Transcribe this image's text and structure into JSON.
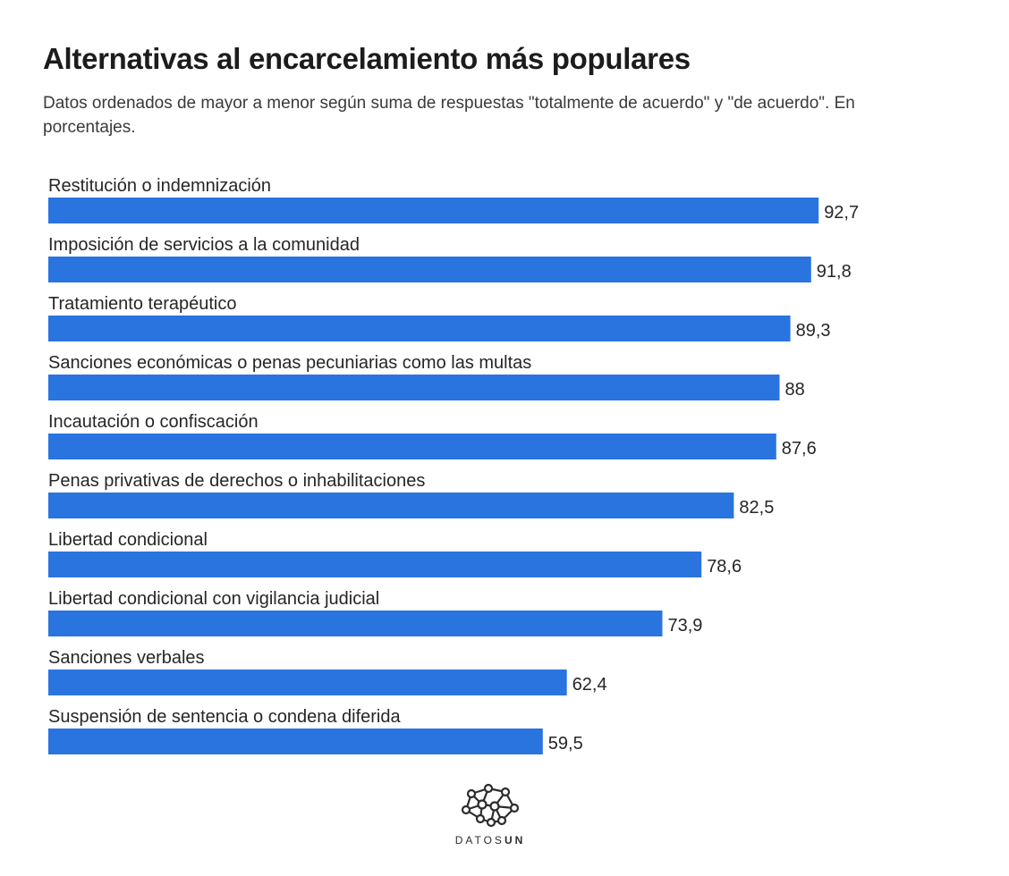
{
  "header": {
    "title": "Alternativas al encarcelamiento más populares",
    "subtitle": "Datos ordenados de mayor a menor según suma de respuestas \"totalmente de acuerdo\" y \"de acuerdo\". En porcentajes."
  },
  "chart_data": {
    "type": "bar",
    "orientation": "horizontal",
    "title": "Alternativas al encarcelamiento más populares",
    "subtitle": "Datos ordenados de mayor a menor según suma de respuestas \"totalmente de acuerdo\" y \"de acuerdo\". En porcentajes.",
    "xlabel": "",
    "ylabel": "",
    "xlim": [
      0,
      100
    ],
    "grid": false,
    "bar_color": "#2a74e0",
    "categories": [
      "Restitución o indemnización",
      "Imposición de servicios a la comunidad",
      "Tratamiento terapéutico",
      "Sanciones económicas o penas pecuniarias como las multas",
      "Incautación o confiscación",
      "Penas privativas de derechos o inhabilitaciones",
      "Libertad condicional",
      "Libertad condicional con vigilancia judicial",
      "Sanciones verbales",
      "Suspensión de sentencia o condena diferida"
    ],
    "values": [
      92.7,
      91.8,
      89.3,
      88,
      87.6,
      82.5,
      78.6,
      73.9,
      62.4,
      59.5
    ],
    "value_labels": [
      "92,7",
      "91,8",
      "89,3",
      "88",
      "87,6",
      "82,5",
      "78,6",
      "73,9",
      "62,4",
      "59,5"
    ]
  },
  "brand": {
    "name_prefix": "DATOS",
    "name_suffix": "UN",
    "logo_icon": "network-brain-icon"
  }
}
